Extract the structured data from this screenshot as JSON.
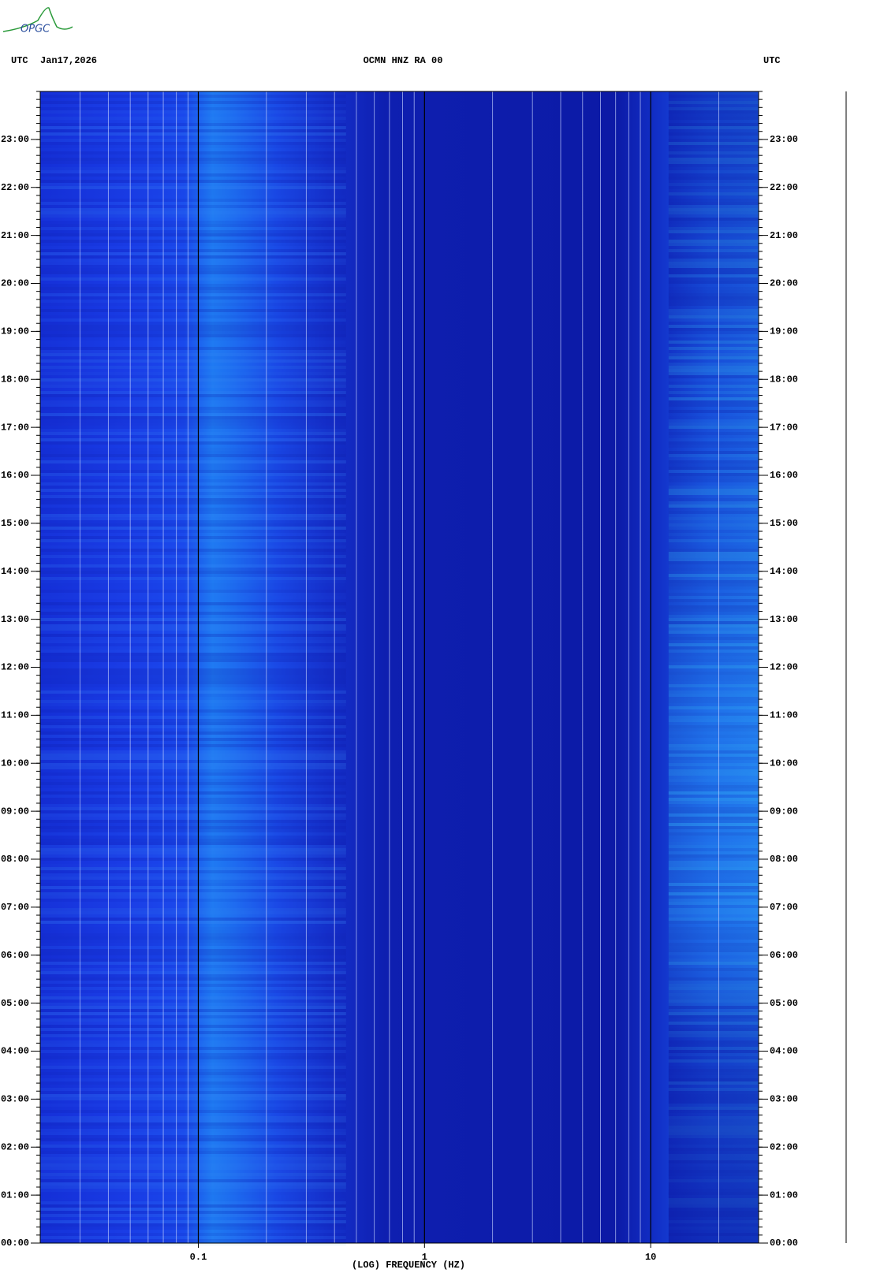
{
  "chart_data": {
    "type": "spectrogram",
    "title": "OCMN HNZ RA 00",
    "date": "Jan17,2026",
    "left_label": "UTC",
    "right_label": "UTC",
    "logo": "OPGC",
    "x_label": "(LOG) FREQUENCY (HZ)",
    "xscale": "log",
    "xlim": [
      0.02,
      30
    ],
    "xticks": [
      0.1,
      1,
      10
    ],
    "ylim": [
      0,
      24
    ],
    "yticks": [
      {
        "value": 0,
        "label": "00:00"
      },
      {
        "value": 1,
        "label": "01:00"
      },
      {
        "value": 2,
        "label": "02:00"
      },
      {
        "value": 3,
        "label": "03:00"
      },
      {
        "value": 4,
        "label": "04:00"
      },
      {
        "value": 5,
        "label": "05:00"
      },
      {
        "value": 6,
        "label": "06:00"
      },
      {
        "value": 7,
        "label": "07:00"
      },
      {
        "value": 8,
        "label": "08:00"
      },
      {
        "value": 9,
        "label": "09:00"
      },
      {
        "value": 10,
        "label": "10:00"
      },
      {
        "value": 11,
        "label": "11:00"
      },
      {
        "value": 12,
        "label": "12:00"
      },
      {
        "value": 13,
        "label": "13:00"
      },
      {
        "value": 14,
        "label": "14:00"
      },
      {
        "value": 15,
        "label": "15:00"
      },
      {
        "value": 16,
        "label": "16:00"
      },
      {
        "value": 17,
        "label": "17:00"
      },
      {
        "value": 18,
        "label": "18:00"
      },
      {
        "value": 19,
        "label": "19:00"
      },
      {
        "value": 20,
        "label": "20:00"
      },
      {
        "value": 21,
        "label": "21:00"
      },
      {
        "value": 22,
        "label": "22:00"
      },
      {
        "value": 23,
        "label": "23:00"
      }
    ],
    "grid": true
  }
}
